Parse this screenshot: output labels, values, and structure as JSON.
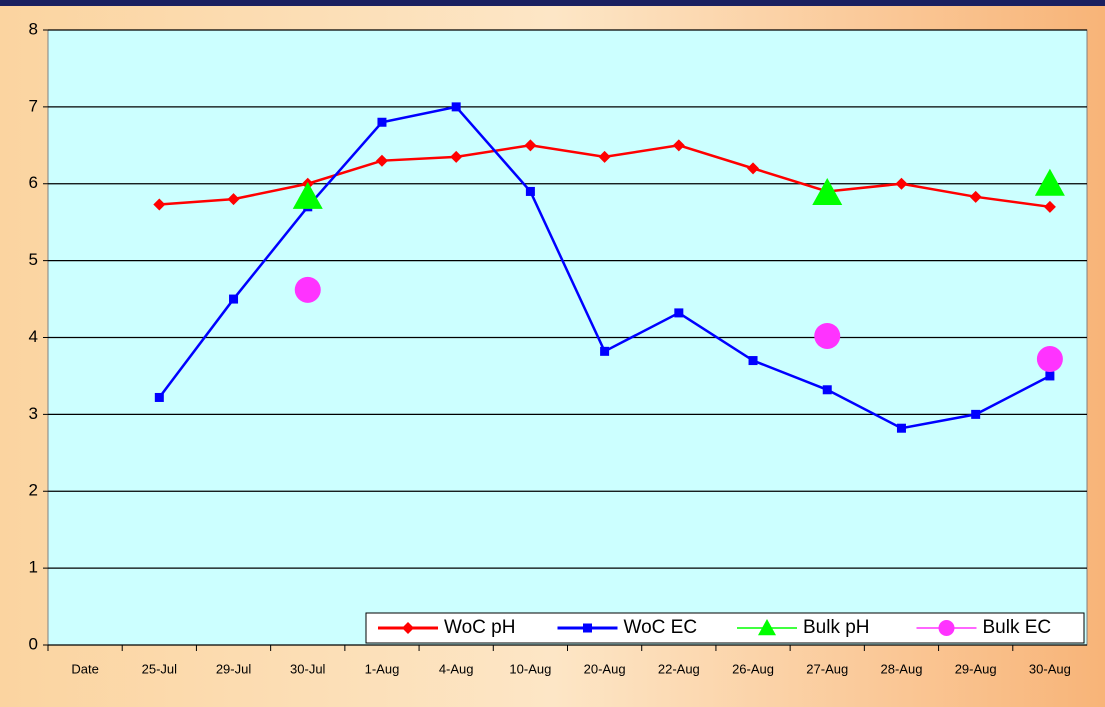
{
  "chart_data": {
    "type": "line",
    "categories": [
      "Date",
      "25-Jul",
      "29-Jul",
      "30-Jul",
      "1-Aug",
      "4-Aug",
      "10-Aug",
      "20-Aug",
      "22-Aug",
      "26-Aug",
      "27-Aug",
      "28-Aug",
      "29-Aug",
      "30-Aug"
    ],
    "series": [
      {
        "name": "WoC pH",
        "color": "#ff0000",
        "marker": "diamond",
        "line": true,
        "values": [
          null,
          5.73,
          5.8,
          6.0,
          6.3,
          6.35,
          6.5,
          6.35,
          6.5,
          6.2,
          5.9,
          6.0,
          5.83,
          5.7
        ]
      },
      {
        "name": "WoC EC",
        "color": "#0000ff",
        "marker": "square",
        "line": true,
        "values": [
          null,
          3.22,
          4.5,
          5.7,
          6.8,
          7.0,
          5.9,
          3.82,
          4.32,
          3.7,
          3.32,
          2.82,
          3.0,
          3.5
        ]
      },
      {
        "name": "Bulk pH",
        "color": "#00ff00",
        "marker": "triangle",
        "line": false,
        "values": [
          null,
          null,
          null,
          5.83,
          null,
          null,
          null,
          null,
          null,
          null,
          5.88,
          null,
          null,
          6.0
        ]
      },
      {
        "name": "Bulk EC",
        "color": "#ff33ff",
        "marker": "circle",
        "line": false,
        "values": [
          null,
          null,
          null,
          4.62,
          null,
          null,
          null,
          null,
          null,
          null,
          4.02,
          null,
          null,
          3.72
        ]
      }
    ],
    "ylim": [
      0,
      8
    ],
    "yticks": [
      0,
      1,
      2,
      3,
      4,
      5,
      6,
      7,
      8
    ],
    "grid": true,
    "legend": "bottom-right"
  }
}
